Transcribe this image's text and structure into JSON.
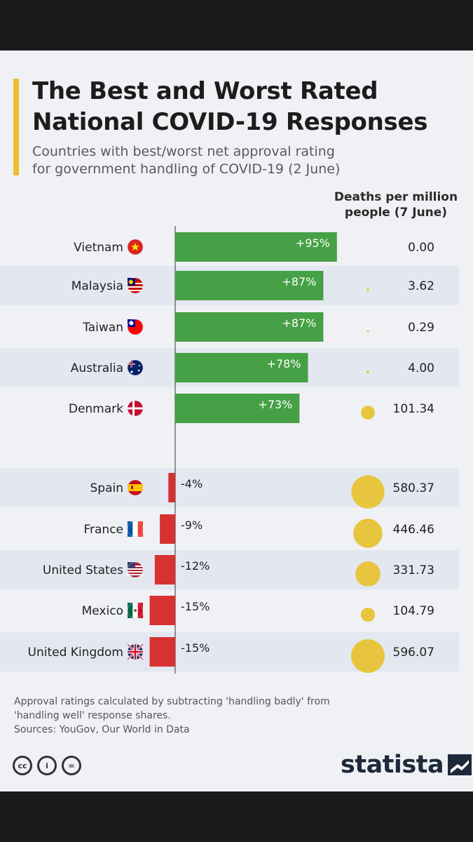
{
  "title_line1": "The Best and Worst Rated",
  "title_line2": "National COVID-19 Responses",
  "subtitle_line1": "Countries with best/worst net approval rating",
  "subtitle_line2": "for government handling of COVID-19 (2 June)",
  "deaths_header_line1": "Deaths per million",
  "deaths_header_line2": "people (7 June)",
  "footnote_line1": "Approval ratings calculated by subtracting 'handling badly' from",
  "footnote_line2": "'handling well' response shares.",
  "sources": "Sources: YouGov, Our World in Data",
  "license_icons": [
    "cc-icon",
    "person-icon",
    "equals-icon"
  ],
  "license_labels": [
    "cc",
    "i",
    "="
  ],
  "brand": "statista",
  "colors": {
    "positive": "#46a046",
    "negative": "#d63232",
    "bubble": "#e8c53e",
    "accent": "#e8c12e",
    "stripe": "#e3e7f0"
  },
  "chart_data": {
    "type": "bar",
    "orientation": "horizontal",
    "title": "The Best and Worst Rated National COVID-19 Responses",
    "subtitle": "Countries with best/worst net approval rating for government handling of COVID-19 (2 June)",
    "categories": [
      "Vietnam",
      "Malaysia",
      "Taiwan",
      "Australia",
      "Denmark",
      "Spain",
      "France",
      "United States",
      "Mexico",
      "United Kingdom"
    ],
    "values": [
      95,
      87,
      87,
      78,
      73,
      -4,
      -9,
      -12,
      -15,
      -15
    ],
    "value_labels": [
      "+95%",
      "+87%",
      "+87%",
      "+78%",
      "+73%",
      "-4%",
      "-9%",
      "-12%",
      "-15%",
      "-15%"
    ],
    "unit": "net approval %",
    "secondary_series": {
      "name": "Deaths per million people (7 June)",
      "type": "bubble",
      "values": [
        0.0,
        3.62,
        0.29,
        4.0,
        101.34,
        580.37,
        446.46,
        331.73,
        104.79,
        596.07
      ],
      "value_labels": [
        "0.00",
        "3.62",
        "0.29",
        "4.00",
        "101.34",
        "580.37",
        "446.46",
        "331.73",
        "104.79",
        "596.07"
      ]
    },
    "flags": [
      "vietnam-flag-icon",
      "malaysia-flag-icon",
      "taiwan-flag-icon",
      "australia-flag-icon",
      "denmark-flag-icon",
      "spain-flag-icon",
      "france-flag-icon",
      "united-states-flag-icon",
      "mexico-flag-icon",
      "united-kingdom-flag-icon"
    ],
    "groups": [
      {
        "name": "best",
        "count": 5
      },
      {
        "name": "worst",
        "count": 5
      }
    ]
  }
}
